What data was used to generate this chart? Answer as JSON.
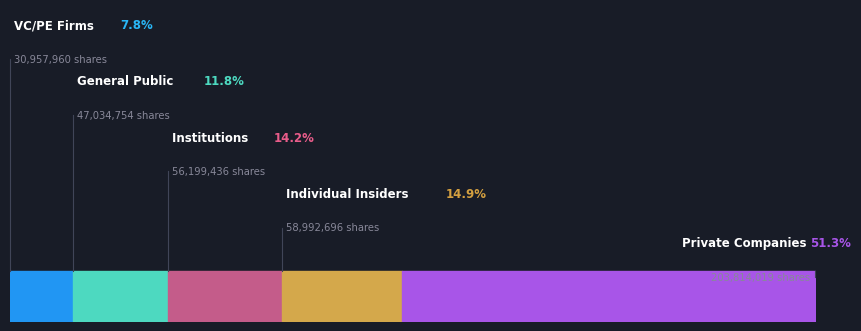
{
  "background_color": "#181c27",
  "categories": [
    "VC/PE Firms",
    "General Public",
    "Institutions",
    "Individual Insiders",
    "Private Companies"
  ],
  "percentages": [
    7.8,
    11.8,
    14.2,
    14.9,
    51.3
  ],
  "shares": [
    "30,957,960 shares",
    "47,034,754 shares",
    "56,199,436 shares",
    "58,992,696 shares",
    "203,814,019 shares"
  ],
  "bar_colors": [
    "#2196f3",
    "#4dd9c0",
    "#c45c8a",
    "#d4a84b",
    "#a855e8"
  ],
  "pct_colors": [
    "#29b6f6",
    "#4dd9c0",
    "#e95c8a",
    "#d4a040",
    "#a855e8"
  ],
  "label_color": "#ffffff",
  "shares_color": "#888899",
  "figsize": [
    8.21,
    3.18
  ]
}
